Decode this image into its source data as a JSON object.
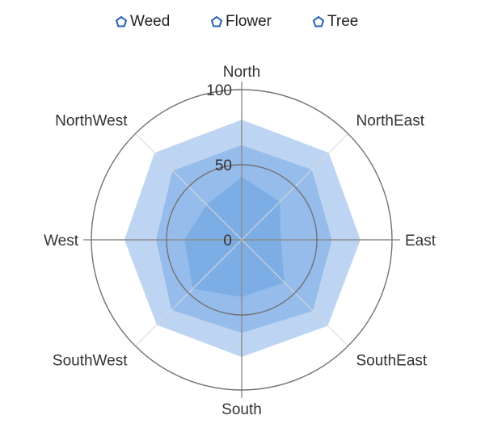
{
  "legend": [
    {
      "label": "Weed",
      "icon": "pentagon-icon"
    },
    {
      "label": "Flower",
      "icon": "pentagon-icon"
    },
    {
      "label": "Tree",
      "icon": "pentagon-icon"
    }
  ],
  "colors": {
    "legend_marker": "#1f5fb8",
    "axis_circle": "#737373",
    "spoke_light": "#d9d9d9",
    "spoke_dark": "#8c8c8c",
    "series_fill": "#5b97df"
  },
  "chart_data": {
    "type": "radar",
    "categories": [
      "North",
      "NorthEast",
      "East",
      "SouthEast",
      "South",
      "SouthWest",
      "West",
      "NorthWest"
    ],
    "radial_ticks": [
      "0",
      "50",
      "100"
    ],
    "rlim": [
      0,
      100
    ],
    "series": [
      {
        "name": "Tree",
        "values": [
          80,
          82,
          79,
          81,
          78,
          80,
          78,
          82
        ]
      },
      {
        "name": "Flower",
        "values": [
          63,
          66,
          60,
          67,
          62,
          66,
          57,
          65
        ]
      },
      {
        "name": "Weed",
        "values": [
          42,
          36,
          26,
          40,
          38,
          46,
          38,
          33
        ]
      }
    ],
    "grid": true,
    "legend_position": "top"
  }
}
